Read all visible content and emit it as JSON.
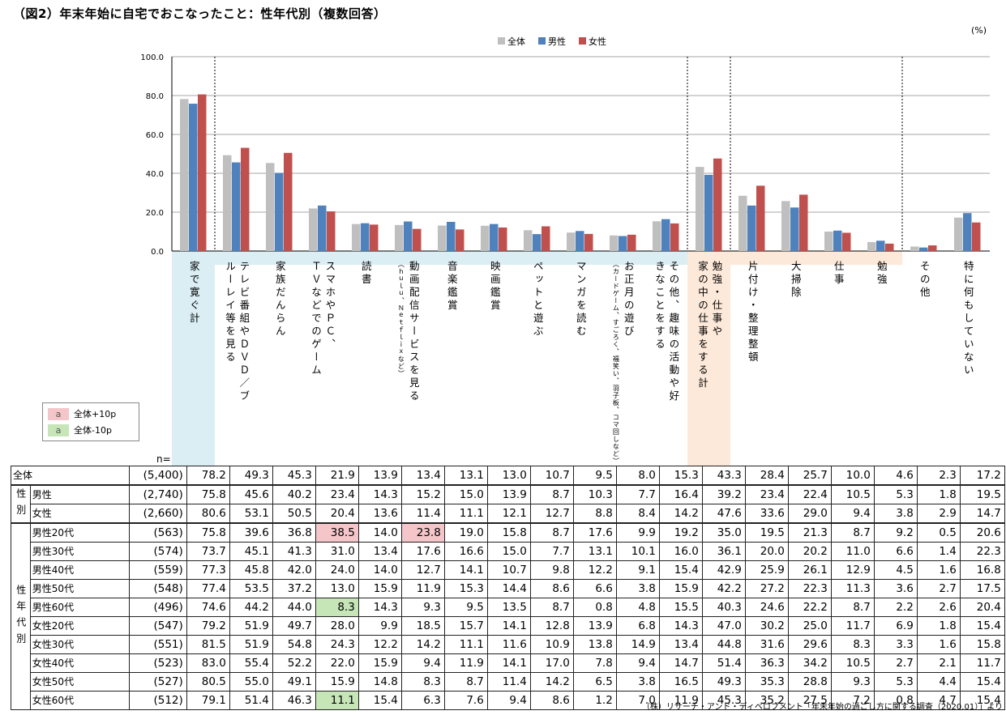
{
  "title": "（図2）年末年始に自宅でおこなったこと：性年代別（複数回答）",
  "unit": "(%)",
  "source": "（株）リサーチ・アンド・ディベロプメント「年末年始の過ごし方に関する調査（2020.01）」より",
  "n_label": "n=",
  "legend": {
    "hi_text": "全体+10p",
    "lo_text": "全体-10p",
    "swatch_char": "a",
    "hi_color": "#f4c6c9",
    "lo_color": "#c6e6b8"
  },
  "group_labels": {
    "sex": "性別",
    "age": "性年代別"
  },
  "colors": {
    "zentai": "#bfbfbf",
    "male": "#4f81bd",
    "female": "#c0504d",
    "blue_band": "#daeef3",
    "orange_band": "#fde9d9"
  },
  "columns": [
    {
      "lines": [
        "家で寛ぐ計"
      ],
      "band": "blue"
    },
    {
      "lines": [
        "テレビ番組やＤＶＤ／ブ",
        "ルーレイ等を見る"
      ],
      "band": "blue"
    },
    {
      "lines": [
        "家族だんらん"
      ],
      "band": "blue"
    },
    {
      "lines": [
        "スマホやＰＣ、",
        "ＴＶなどでのゲーム"
      ],
      "band": "blue"
    },
    {
      "lines": [
        "読書"
      ],
      "band": "blue"
    },
    {
      "lines": [
        "動画配信サービスを見る"
      ],
      "note": "（ｈｕｌｕ、Ｎｅｔｆｌｉｘなど）",
      "band": "blue"
    },
    {
      "lines": [
        "音楽鑑賞"
      ],
      "band": "blue"
    },
    {
      "lines": [
        "映画鑑賞"
      ],
      "band": "blue"
    },
    {
      "lines": [
        "ペットと遊ぶ"
      ],
      "band": "blue"
    },
    {
      "lines": [
        "マンガを読む"
      ],
      "band": "blue"
    },
    {
      "lines": [
        "お正月の遊び"
      ],
      "note": "（カードゲーム、すごろく、福笑い、羽子板、コマ回しなど）",
      "band": "blue"
    },
    {
      "lines": [
        "その他、趣味の活動や好",
        "きなことをする"
      ],
      "band": "blue"
    },
    {
      "lines": [
        "勉強・仕事や",
        "家の中の仕事をする計"
      ],
      "band": "orange"
    },
    {
      "lines": [
        "片付け・整理整頓"
      ],
      "band": "orange"
    },
    {
      "lines": [
        "大掃除"
      ],
      "band": "orange"
    },
    {
      "lines": [
        "仕事"
      ],
      "band": "orange"
    },
    {
      "lines": [
        "勉強"
      ],
      "band": "orange"
    },
    {
      "lines": [
        "その他"
      ],
      "band": "none"
    },
    {
      "lines": [
        "特に何もしていない"
      ],
      "band": "none"
    }
  ],
  "chart_data": {
    "type": "bar",
    "ylim": [
      0,
      100
    ],
    "yticks": [
      "100.0",
      "80.0",
      "60.0",
      "40.0",
      "20.0",
      "0.0"
    ],
    "legend_position": "top-center",
    "grid": true,
    "series": [
      {
        "name": "全体",
        "color": "#bfbfbf",
        "values": [
          78.2,
          49.3,
          45.3,
          21.9,
          13.9,
          13.4,
          13.1,
          13.0,
          10.7,
          9.5,
          8.0,
          15.3,
          43.3,
          28.4,
          25.7,
          10.0,
          4.6,
          2.3,
          17.2
        ]
      },
      {
        "name": "男性",
        "color": "#4f81bd",
        "values": [
          75.8,
          45.6,
          40.2,
          23.4,
          14.3,
          15.2,
          15.0,
          13.9,
          8.7,
          10.3,
          7.7,
          16.4,
          39.2,
          23.4,
          22.4,
          10.5,
          5.3,
          1.8,
          19.5
        ]
      },
      {
        "name": "女性",
        "color": "#c0504d",
        "values": [
          80.6,
          53.1,
          50.5,
          20.4,
          13.6,
          11.4,
          11.1,
          12.1,
          12.7,
          8.8,
          8.4,
          14.2,
          47.6,
          33.6,
          29.0,
          9.4,
          3.8,
          2.9,
          14.7
        ]
      }
    ]
  },
  "table": {
    "rows": [
      {
        "label": "全体",
        "n": "(5,400)",
        "values": [
          "78.2",
          "49.3",
          "45.3",
          "21.9",
          "13.9",
          "13.4",
          "13.1",
          "13.0",
          "10.7",
          "9.5",
          "8.0",
          "15.3",
          "43.3",
          "28.4",
          "25.7",
          "10.0",
          "4.6",
          "2.3",
          "17.2"
        ],
        "hl": []
      },
      {
        "label": "男性",
        "n": "(2,740)",
        "values": [
          "75.8",
          "45.6",
          "40.2",
          "23.4",
          "14.3",
          "15.2",
          "15.0",
          "13.9",
          "8.7",
          "10.3",
          "7.7",
          "16.4",
          "39.2",
          "23.4",
          "22.4",
          "10.5",
          "5.3",
          "1.8",
          "19.5"
        ],
        "hl": []
      },
      {
        "label": "女性",
        "n": "(2,660)",
        "values": [
          "80.6",
          "53.1",
          "50.5",
          "20.4",
          "13.6",
          "11.4",
          "11.1",
          "12.1",
          "12.7",
          "8.8",
          "8.4",
          "14.2",
          "47.6",
          "33.6",
          "29.0",
          "9.4",
          "3.8",
          "2.9",
          "14.7"
        ],
        "hl": []
      },
      {
        "label": "男性20代",
        "n": "(563)",
        "values": [
          "75.8",
          "39.6",
          "36.8",
          "38.5",
          "14.0",
          "23.8",
          "19.0",
          "15.8",
          "8.7",
          "17.6",
          "9.9",
          "19.2",
          "35.0",
          "19.5",
          "21.3",
          "8.7",
          "9.2",
          "0.5",
          "20.6"
        ],
        "hl": [
          [
            3,
            "hi"
          ],
          [
            5,
            "hi"
          ]
        ]
      },
      {
        "label": "男性30代",
        "n": "(574)",
        "values": [
          "73.7",
          "45.1",
          "41.3",
          "31.0",
          "13.4",
          "17.6",
          "16.6",
          "15.0",
          "7.7",
          "13.1",
          "10.1",
          "16.0",
          "36.1",
          "20.0",
          "20.2",
          "11.0",
          "6.6",
          "1.4",
          "22.3"
        ],
        "hl": []
      },
      {
        "label": "男性40代",
        "n": "(559)",
        "values": [
          "77.3",
          "45.8",
          "42.0",
          "24.0",
          "14.0",
          "12.7",
          "14.1",
          "10.7",
          "9.8",
          "12.2",
          "9.1",
          "15.4",
          "42.9",
          "25.9",
          "26.1",
          "12.9",
          "4.5",
          "1.6",
          "16.8"
        ],
        "hl": []
      },
      {
        "label": "男性50代",
        "n": "(548)",
        "values": [
          "77.4",
          "53.5",
          "37.2",
          "13.0",
          "15.9",
          "11.9",
          "15.3",
          "14.4",
          "8.6",
          "6.6",
          "3.8",
          "15.9",
          "42.2",
          "27.2",
          "22.3",
          "11.3",
          "3.6",
          "2.7",
          "17.5"
        ],
        "hl": []
      },
      {
        "label": "男性60代",
        "n": "(496)",
        "values": [
          "74.6",
          "44.2",
          "44.0",
          "8.3",
          "14.3",
          "9.3",
          "9.5",
          "13.5",
          "8.7",
          "0.8",
          "4.8",
          "15.5",
          "40.3",
          "24.6",
          "22.2",
          "8.7",
          "2.2",
          "2.6",
          "20.4"
        ],
        "hl": [
          [
            3,
            "lo"
          ]
        ]
      },
      {
        "label": "女性20代",
        "n": "(547)",
        "values": [
          "79.2",
          "51.9",
          "49.7",
          "28.0",
          "9.9",
          "18.5",
          "15.7",
          "14.1",
          "12.8",
          "13.9",
          "6.8",
          "14.3",
          "47.0",
          "30.2",
          "25.0",
          "11.7",
          "6.9",
          "1.8",
          "15.4"
        ],
        "hl": []
      },
      {
        "label": "女性30代",
        "n": "(551)",
        "values": [
          "81.5",
          "51.9",
          "54.8",
          "24.3",
          "12.2",
          "14.2",
          "11.1",
          "11.6",
          "10.9",
          "13.8",
          "14.9",
          "13.4",
          "44.8",
          "31.6",
          "29.6",
          "8.3",
          "3.3",
          "1.6",
          "15.8"
        ],
        "hl": []
      },
      {
        "label": "女性40代",
        "n": "(523)",
        "values": [
          "83.0",
          "55.4",
          "52.2",
          "22.0",
          "15.9",
          "9.4",
          "11.9",
          "14.1",
          "17.0",
          "7.8",
          "9.4",
          "14.7",
          "51.4",
          "36.3",
          "34.2",
          "10.5",
          "2.7",
          "2.1",
          "11.7"
        ],
        "hl": []
      },
      {
        "label": "女性50代",
        "n": "(527)",
        "values": [
          "80.5",
          "55.0",
          "49.1",
          "15.9",
          "14.8",
          "8.3",
          "8.7",
          "11.4",
          "14.2",
          "6.5",
          "3.8",
          "16.5",
          "49.3",
          "35.3",
          "28.8",
          "9.3",
          "5.3",
          "4.4",
          "15.4"
        ],
        "hl": []
      },
      {
        "label": "女性60代",
        "n": "(512)",
        "values": [
          "79.1",
          "51.4",
          "46.3",
          "11.1",
          "15.4",
          "6.3",
          "7.6",
          "9.4",
          "8.6",
          "1.2",
          "7.0",
          "11.9",
          "45.3",
          "35.2",
          "27.5",
          "7.2",
          "0.8",
          "4.7",
          "15.4"
        ],
        "hl": [
          [
            3,
            "lo"
          ]
        ]
      }
    ]
  }
}
